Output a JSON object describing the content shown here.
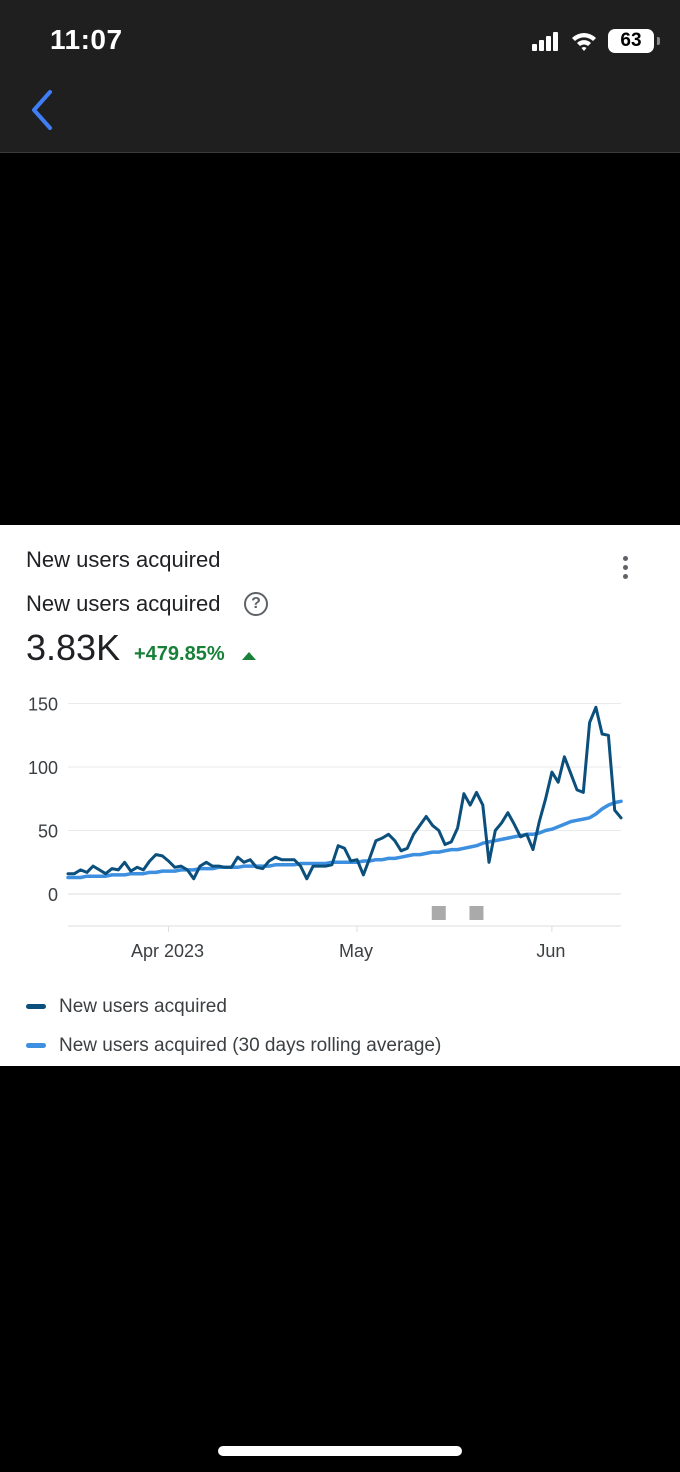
{
  "status_bar": {
    "time": "11:07",
    "battery": "63"
  },
  "card": {
    "title": "New users acquired",
    "metric_label": "New users acquired",
    "metric_value": "3.83K",
    "metric_change": "+479.85%"
  },
  "colors": {
    "series_primary": "#0b4f7c",
    "series_average": "#3d8fe0",
    "positive": "#188038"
  },
  "chart_data": {
    "type": "line",
    "x_start": "2023-03-16",
    "xaxis_ticks": [
      "Apr 2023",
      "May",
      "Jun"
    ],
    "y_ticks": [
      "150",
      "100",
      "50",
      "0"
    ],
    "ylim": [
      -20,
      160
    ],
    "grid": true,
    "series": [
      {
        "name": "New users acquired",
        "color": "#0b4f7c",
        "values": [
          16,
          16,
          19,
          17,
          22,
          19,
          16,
          20,
          19,
          25,
          18,
          21,
          19,
          26,
          31,
          30,
          26,
          21,
          22,
          19,
          12,
          22,
          25,
          22,
          22,
          21,
          21,
          29,
          25,
          27,
          21,
          20,
          26,
          29,
          27,
          27,
          27,
          22,
          12,
          22,
          22,
          22,
          23,
          38,
          36,
          26,
          27,
          15,
          28,
          42,
          44,
          47,
          42,
          34,
          36,
          47,
          54,
          61,
          54,
          50,
          39,
          41,
          52,
          79,
          70,
          80,
          70,
          25,
          50,
          56,
          64,
          55,
          45,
          47,
          35,
          57,
          75,
          96,
          88,
          108,
          95,
          82,
          80,
          135,
          147,
          126,
          125,
          66,
          60
        ]
      },
      {
        "name": "New users acquired (30 days rolling average)",
        "color": "#3d8fe0",
        "values": [
          13,
          13,
          13,
          14,
          14,
          14,
          14,
          15,
          15,
          15,
          16,
          16,
          16,
          17,
          17,
          18,
          18,
          18,
          19,
          19,
          19,
          20,
          20,
          20,
          21,
          21,
          21,
          21,
          22,
          22,
          22,
          22,
          22,
          23,
          23,
          23,
          23,
          24,
          24,
          24,
          24,
          24,
          25,
          25,
          25,
          25,
          25,
          26,
          26,
          27,
          27,
          28,
          28,
          29,
          30,
          31,
          31,
          32,
          33,
          33,
          34,
          35,
          35,
          36,
          37,
          38,
          40,
          41,
          42,
          43,
          44,
          45,
          46,
          47,
          47,
          48,
          50,
          51,
          53,
          55,
          57,
          58,
          59,
          60,
          63,
          67,
          70,
          72,
          73
        ]
      }
    ]
  },
  "annotations_label": ""
}
